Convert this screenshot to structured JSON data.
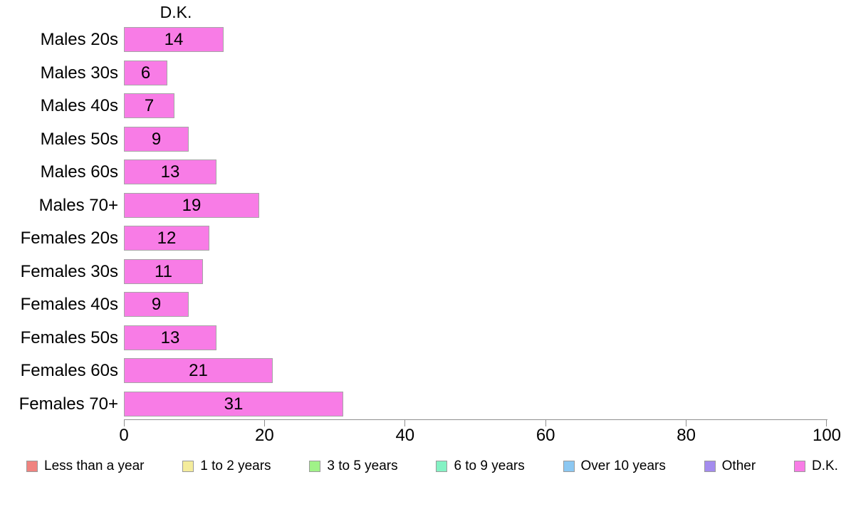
{
  "chart_data": {
    "type": "bar",
    "orientation": "horizontal",
    "title": "D.K.",
    "categories": [
      "Males 20s",
      "Males 30s",
      "Males 40s",
      "Males 50s",
      "Males 60s",
      "Males 70+",
      "Females 20s",
      "Females 30s",
      "Females 40s",
      "Females 50s",
      "Females 60s",
      "Females 70+"
    ],
    "values": [
      14,
      6,
      7,
      9,
      13,
      19,
      12,
      11,
      9,
      13,
      21,
      31
    ],
    "xlabel": "",
    "ylabel": "",
    "xlim": [
      0,
      100
    ],
    "x_ticks": [
      0,
      20,
      40,
      60,
      80,
      100
    ],
    "grid": false,
    "legend_position": "bottom",
    "bar_color": "#F87CE6",
    "bar_border_color": "#A6A6A6",
    "axis_color": "#8F8F8F",
    "legend": [
      {
        "label": "Less than a year",
        "color": "#F0837F"
      },
      {
        "label": "1 to 2 years",
        "color": "#F4EC9C"
      },
      {
        "label": "3 to 5 years",
        "color": "#A0F288"
      },
      {
        "label": "6 to 9 years",
        "color": "#84F2C4"
      },
      {
        "label": "Over 10 years",
        "color": "#8CC8F2"
      },
      {
        "label": "Other",
        "color": "#A48CEE"
      },
      {
        "label": "D.K.",
        "color": "#F87CE6"
      }
    ]
  }
}
